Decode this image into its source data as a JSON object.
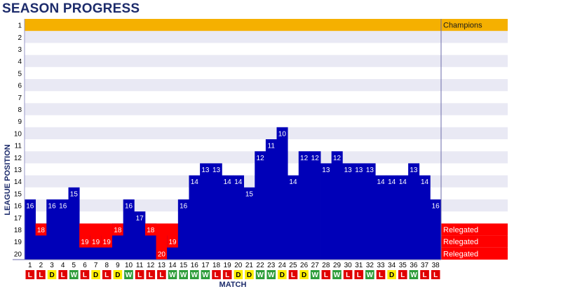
{
  "title": "SEASON PROGRESS",
  "colors": {
    "bar": "#0000b8",
    "relegated_bar": "#ff0000",
    "champions_band": "#f5b000",
    "stripe": "#e9e9f4",
    "win": "#2e9d3a",
    "draw": "#ffee00",
    "loss": "#e00000",
    "title": "#1c2b6b"
  },
  "chart_data": {
    "type": "bar",
    "title": "SEASON PROGRESS",
    "xlabel": "MATCH",
    "ylabel": "LEAGUE POSITION",
    "y_range": [
      1,
      20
    ],
    "y_inverted": true,
    "categories": [
      "1",
      "2",
      "3",
      "4",
      "5",
      "6",
      "7",
      "8",
      "9",
      "10",
      "11",
      "12",
      "13",
      "14",
      "15",
      "16",
      "17",
      "18",
      "19",
      "20",
      "21",
      "22",
      "23",
      "24",
      "25",
      "26",
      "27",
      "28",
      "29",
      "30",
      "31",
      "32",
      "33",
      "34",
      "35",
      "36",
      "37",
      "38"
    ],
    "positions": [
      16,
      18,
      16,
      16,
      15,
      19,
      19,
      19,
      18,
      16,
      17,
      18,
      20,
      19,
      16,
      14,
      13,
      13,
      14,
      14,
      15,
      12,
      11,
      10,
      14,
      12,
      12,
      13,
      12,
      13,
      13,
      13,
      14,
      14,
      14,
      13,
      14,
      16
    ],
    "results": [
      "L",
      "L",
      "D",
      "L",
      "W",
      "L",
      "D",
      "L",
      "D",
      "W",
      "L",
      "L",
      "L",
      "W",
      "W",
      "W",
      "W",
      "L",
      "L",
      "D",
      "D",
      "W",
      "W",
      "D",
      "L",
      "D",
      "W",
      "L",
      "W",
      "L",
      "L",
      "W",
      "L",
      "D",
      "L",
      "W",
      "L",
      "L"
    ],
    "zones": {
      "champions": {
        "positions": [
          1
        ],
        "label": "Champions"
      },
      "relegated": {
        "positions": [
          18,
          19,
          20
        ],
        "label": "Relegated"
      }
    }
  }
}
